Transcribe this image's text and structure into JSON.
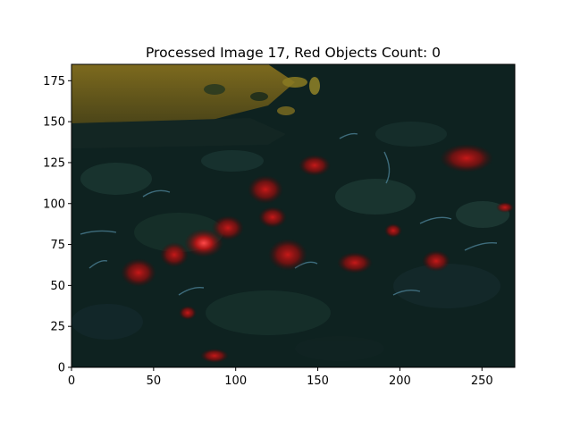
{
  "chart_data": {
    "type": "image",
    "title": "Processed Image 17, Red Objects Count: 0",
    "xlabel": "",
    "ylabel": "",
    "xlim": [
      0,
      270
    ],
    "ylim": [
      0,
      185
    ],
    "x_ticks": [
      0,
      50,
      100,
      150,
      200,
      250
    ],
    "y_ticks": [
      0,
      25,
      50,
      75,
      100,
      125,
      150,
      175
    ],
    "grid": false,
    "colors": {
      "background": "#0e2220",
      "foliage_dark": "#0a1a18",
      "foliage_mid": "#1d3a35",
      "highlight_blue": "#4a7f93",
      "sky_yellow": "#7a6a20",
      "red_object": "#9a1010"
    }
  }
}
